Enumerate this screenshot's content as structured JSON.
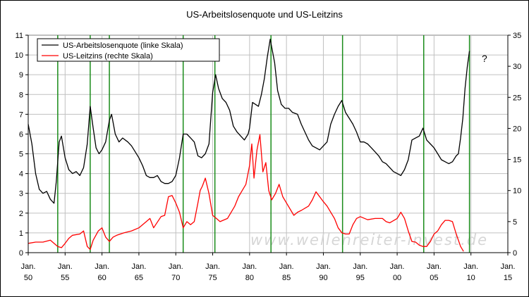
{
  "chart_data": {
    "type": "line",
    "title": "US-Arbeitslosenquote und US-Leitzins",
    "x_ticks": [
      {
        "year": 1950,
        "top": "Jan.",
        "bottom": "50"
      },
      {
        "year": 1955,
        "top": "Jan.",
        "bottom": "55"
      },
      {
        "year": 1960,
        "top": "Jan.",
        "bottom": "60"
      },
      {
        "year": 1965,
        "top": "Jan.",
        "bottom": "65"
      },
      {
        "year": 1970,
        "top": "Jan.",
        "bottom": "70"
      },
      {
        "year": 1975,
        "top": "Jan.",
        "bottom": "75"
      },
      {
        "year": 1980,
        "top": "Jan.",
        "bottom": "80"
      },
      {
        "year": 1985,
        "top": "Jan.",
        "bottom": "85"
      },
      {
        "year": 1990,
        "top": "Jan.",
        "bottom": "90"
      },
      {
        "year": 1995,
        "top": "Jan.",
        "bottom": "95"
      },
      {
        "year": 2000,
        "top": "Jan.",
        "bottom": "00"
      },
      {
        "year": 2005,
        "top": "Jan.",
        "bottom": "05"
      },
      {
        "year": 2010,
        "top": "Jan.",
        "bottom": "10"
      },
      {
        "year": 2015,
        "top": "Jan.",
        "bottom": "15"
      }
    ],
    "xlim": [
      1950,
      2015
    ],
    "y_left": {
      "ylim": [
        0,
        11
      ],
      "ticks": [
        "0",
        "1",
        "2",
        "3",
        "4",
        "5",
        "6",
        "7",
        "8",
        "9",
        "10",
        "11"
      ]
    },
    "y_right": {
      "ylim": [
        0,
        35
      ],
      "ticks": [
        "0",
        "5",
        "10",
        "15",
        "20",
        "25",
        "30",
        "35"
      ]
    },
    "grid": true,
    "legend_position": "top-left",
    "series": [
      {
        "name": "US-Arbeitslosenquote (linke Skala)",
        "axis": "left",
        "color": "#000000",
        "x": [
          1950.0,
          1950.5,
          1951.0,
          1951.5,
          1952.0,
          1952.5,
          1953.0,
          1953.5,
          1953.8,
          1954.2,
          1954.5,
          1955.0,
          1955.5,
          1956.0,
          1956.5,
          1957.0,
          1957.5,
          1958.0,
          1958.4,
          1958.8,
          1959.2,
          1959.6,
          1960.0,
          1960.5,
          1961.0,
          1961.3,
          1961.8,
          1962.3,
          1962.8,
          1963.5,
          1964.0,
          1964.5,
          1965.0,
          1965.5,
          1966.0,
          1966.5,
          1967.0,
          1967.5,
          1968.0,
          1968.5,
          1969.0,
          1969.5,
          1970.0,
          1970.5,
          1971.0,
          1971.5,
          1972.0,
          1972.5,
          1973.0,
          1973.5,
          1974.0,
          1974.5,
          1975.0,
          1975.4,
          1975.8,
          1976.3,
          1976.8,
          1977.3,
          1977.8,
          1978.3,
          1978.8,
          1979.3,
          1979.8,
          1980.0,
          1980.4,
          1980.8,
          1981.2,
          1981.6,
          1982.0,
          1982.4,
          1982.8,
          1983.0,
          1983.4,
          1983.8,
          1984.3,
          1984.8,
          1985.3,
          1985.8,
          1986.5,
          1987.0,
          1987.5,
          1988.0,
          1988.5,
          1989.0,
          1989.5,
          1990.0,
          1990.5,
          1991.0,
          1991.5,
          1992.0,
          1992.5,
          1993.0,
          1993.5,
          1994.0,
          1994.5,
          1995.0,
          1995.5,
          1996.0,
          1996.5,
          1997.0,
          1997.5,
          1998.0,
          1998.5,
          1999.0,
          1999.5,
          2000.0,
          2000.5,
          2001.0,
          2001.5,
          2002.0,
          2002.5,
          2003.0,
          2003.5,
          2004.0,
          2004.5,
          2005.0,
          2005.5,
          2006.0,
          2006.5,
          2007.0,
          2007.5,
          2008.0,
          2008.3,
          2008.6,
          2008.9,
          2009.2,
          2009.5,
          2009.8
        ],
        "values": [
          6.5,
          5.5,
          4.0,
          3.2,
          3.0,
          3.1,
          2.7,
          2.5,
          3.6,
          5.6,
          5.9,
          4.8,
          4.2,
          4.0,
          4.1,
          3.9,
          4.3,
          5.5,
          7.4,
          6.3,
          5.3,
          5.0,
          5.2,
          5.6,
          6.7,
          7.0,
          6.0,
          5.6,
          5.8,
          5.6,
          5.4,
          5.1,
          4.8,
          4.4,
          3.9,
          3.8,
          3.8,
          3.9,
          3.6,
          3.5,
          3.5,
          3.6,
          3.9,
          4.8,
          6.0,
          6.0,
          5.8,
          5.6,
          4.9,
          4.8,
          5.0,
          5.5,
          8.1,
          9.0,
          8.3,
          7.8,
          7.6,
          7.2,
          6.4,
          6.1,
          5.9,
          5.7,
          6.0,
          6.3,
          7.6,
          7.5,
          7.4,
          8.0,
          8.8,
          9.9,
          10.8,
          10.4,
          9.6,
          8.2,
          7.5,
          7.3,
          7.3,
          7.1,
          7.0,
          6.5,
          6.1,
          5.7,
          5.4,
          5.3,
          5.2,
          5.4,
          5.6,
          6.5,
          7.0,
          7.4,
          7.7,
          7.1,
          6.8,
          6.5,
          6.1,
          5.6,
          5.6,
          5.5,
          5.3,
          5.1,
          4.9,
          4.6,
          4.5,
          4.3,
          4.1,
          4.0,
          3.9,
          4.2,
          4.7,
          5.7,
          5.8,
          5.9,
          6.3,
          5.7,
          5.5,
          5.3,
          5.0,
          4.7,
          4.6,
          4.5,
          4.6,
          4.9,
          5.0,
          5.8,
          6.8,
          8.3,
          9.4,
          10.2
        ]
      },
      {
        "name": "US-Leitzins (rechte Skala)",
        "axis": "right",
        "color": "#ff0000",
        "x": [
          1950.0,
          1951.0,
          1952.0,
          1953.0,
          1954.0,
          1954.5,
          1955.0,
          1955.5,
          1956.0,
          1957.0,
          1957.5,
          1958.0,
          1958.4,
          1958.8,
          1959.5,
          1960.0,
          1960.5,
          1961.0,
          1961.5,
          1962.0,
          1963.0,
          1964.0,
          1965.0,
          1966.0,
          1966.5,
          1967.0,
          1968.0,
          1968.5,
          1969.0,
          1969.5,
          1970.0,
          1970.5,
          1971.0,
          1971.5,
          1972.0,
          1972.5,
          1973.0,
          1973.3,
          1973.6,
          1974.0,
          1974.5,
          1975.0,
          1975.5,
          1976.0,
          1977.0,
          1978.0,
          1978.5,
          1979.0,
          1979.5,
          1980.0,
          1980.3,
          1980.6,
          1981.0,
          1981.4,
          1981.8,
          1982.2,
          1982.6,
          1983.0,
          1983.5,
          1984.0,
          1984.5,
          1985.0,
          1986.0,
          1986.5,
          1987.0,
          1988.0,
          1988.5,
          1989.0,
          1989.5,
          1990.0,
          1990.5,
          1991.0,
          1991.5,
          1992.0,
          1992.5,
          1993.0,
          1993.5,
          1994.0,
          1994.5,
          1995.0,
          1996.0,
          1997.0,
          1998.0,
          1998.5,
          1999.0,
          2000.0,
          2000.5,
          2001.0,
          2001.5,
          2002.0,
          2002.5,
          2003.0,
          2003.5,
          2004.0,
          2004.5,
          2005.0,
          2005.5,
          2006.0,
          2006.5,
          2007.0,
          2007.5,
          2008.0,
          2008.3,
          2008.6,
          2009.0
        ],
        "values": [
          1.5,
          1.7,
          1.7,
          2.0,
          1.0,
          0.8,
          1.5,
          2.3,
          2.8,
          3.0,
          3.5,
          1.0,
          0.5,
          2.0,
          3.5,
          4.0,
          2.5,
          1.8,
          2.5,
          2.8,
          3.2,
          3.5,
          4.0,
          5.0,
          5.5,
          4.0,
          5.8,
          6.0,
          9.0,
          9.2,
          8.0,
          6.5,
          4.0,
          5.0,
          4.5,
          5.0,
          8.0,
          10.0,
          10.7,
          12.0,
          9.5,
          6.0,
          5.5,
          5.0,
          5.5,
          7.5,
          9.0,
          10.0,
          11.0,
          14.0,
          17.5,
          12.0,
          16.5,
          19.0,
          13.0,
          14.5,
          10.0,
          8.5,
          9.5,
          11.0,
          9.0,
          8.0,
          6.0,
          6.5,
          6.8,
          7.5,
          8.5,
          9.8,
          9.0,
          8.2,
          7.5,
          6.5,
          5.5,
          4.0,
          3.2,
          3.0,
          3.0,
          4.5,
          5.5,
          5.8,
          5.3,
          5.5,
          5.5,
          5.0,
          4.8,
          5.5,
          6.5,
          5.5,
          3.5,
          1.8,
          1.7,
          1.2,
          1.0,
          1.0,
          1.8,
          3.0,
          3.5,
          4.5,
          5.2,
          5.2,
          5.0,
          3.0,
          2.0,
          1.0,
          0.2
        ]
      }
    ],
    "vertical_markers": {
      "color": "#1a8c1a",
      "x": [
        1954.0,
        1958.4,
        1961.0,
        1971.0,
        1975.3,
        1982.9,
        1992.6,
        2003.6,
        2009.8
      ]
    },
    "annotations": [
      {
        "text": "?"
      }
    ],
    "watermark": "www.wellenreiter-invest.de"
  }
}
